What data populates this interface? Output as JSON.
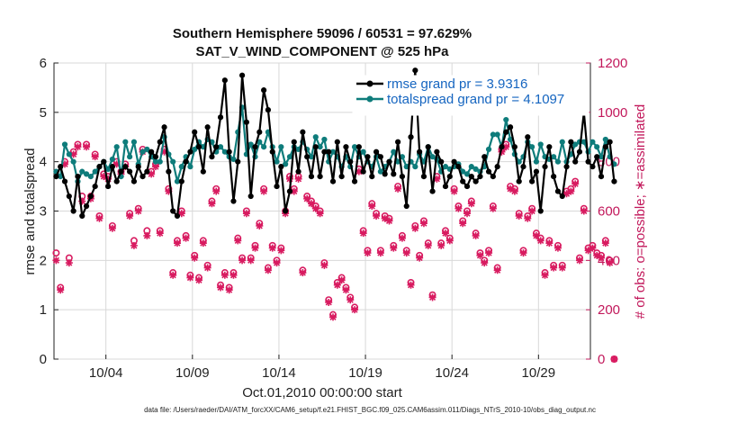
{
  "chart_data": {
    "type": "line",
    "title": "Southern Hemisphere 59096 / 60531 = 97.629%",
    "subtitle": "SAT_V_WIND_COMPONENT @ 525 hPa",
    "xlabel": "Oct.01,2010 00:00:00 start",
    "ylabel": "rmse and totalspread",
    "y2label": "# of obs: o=possible; ∗=assimilated",
    "ylim": [
      0,
      6
    ],
    "y2lim": [
      0,
      1200
    ],
    "xlim": [
      0,
      31
    ],
    "yticks": [
      "0",
      "1",
      "2",
      "3",
      "4",
      "5",
      "6"
    ],
    "y2ticks": [
      "0",
      "200",
      "400",
      "600",
      "800",
      "1000",
      "1200"
    ],
    "xtick_labels": [
      "10/04",
      "10/09",
      "10/14",
      "10/19",
      "10/24",
      "10/29"
    ],
    "xtick_positions": [
      3,
      8,
      13,
      18,
      23,
      28
    ],
    "legend": [
      "rmse grand pr = 3.9316",
      "totalspread grand pr = 4.1097"
    ],
    "colors": {
      "rmse": "#000000",
      "spread": "#0e7c7b",
      "obs": "#d81b60"
    },
    "series": [
      {
        "name": "rmse",
        "axis": "left",
        "x_step": 0.25,
        "x_start": 0.125,
        "values": [
          3.7,
          3.9,
          3.6,
          3.3,
          3.0,
          3.7,
          2.9,
          3.1,
          3.3,
          3.5,
          3.9,
          4.0,
          3.5,
          3.9,
          3.6,
          3.8,
          3.9,
          3.8,
          3.6,
          3.9,
          3.7,
          3.8,
          4.2,
          4.1,
          4.4,
          4.7,
          3.8,
          3.0,
          2.9,
          3.6,
          4.0,
          4.2,
          4.6,
          4.3,
          3.8,
          4.7,
          4.1,
          4.3,
          4.9,
          5.65,
          4.2,
          3.2,
          4.0,
          5.75,
          4.8,
          3.3,
          4.3,
          4.6,
          5.45,
          5.05,
          4.2,
          3.5,
          3.9,
          3.0,
          3.4,
          4.4,
          3.8,
          4.6,
          4.1,
          3.7,
          4.3,
          3.7,
          4.2,
          4.2,
          3.6,
          4.4,
          3.7,
          4.3,
          4.0,
          3.6,
          4.3,
          3.8,
          4.1,
          3.7,
          4.2,
          4.1,
          3.75,
          4.0,
          3.75,
          4.4,
          3.7,
          3.1,
          4.5,
          5.85,
          4.2,
          3.7,
          4.3,
          3.4,
          4.2,
          4.0,
          3.5,
          3.7,
          4.0,
          3.9,
          3.6,
          3.5,
          3.7,
          3.6,
          3.7,
          4.1,
          3.8,
          3.7,
          3.9,
          4.3,
          4.6,
          4.7,
          4.3,
          3.6,
          3.9,
          4.5,
          3.6,
          3.8,
          3.0,
          3.9,
          4.3,
          3.7,
          3.4,
          3.3,
          3.9,
          4.4,
          4.0,
          4.2,
          5.0,
          4.0,
          3.9,
          4.1,
          3.7,
          4.3,
          4.4,
          3.6
        ]
      },
      {
        "name": "totalspread",
        "axis": "left",
        "x_step": 0.25,
        "x_start": 0.125,
        "values": [
          3.8,
          3.7,
          4.35,
          4.15,
          4.0,
          3.6,
          3.8,
          3.75,
          3.7,
          3.8,
          3.9,
          4.0,
          3.85,
          4.05,
          4.3,
          3.7,
          4.4,
          4.1,
          4.4,
          3.95,
          4.2,
          4.25,
          4.1,
          4.0,
          4.0,
          4.5,
          4.15,
          4.0,
          3.6,
          3.9,
          4.1,
          3.9,
          4.25,
          4.4,
          4.3,
          4.45,
          4.4,
          4.2,
          4.3,
          4.2,
          4.1,
          4.05,
          4.6,
          5.1,
          4.15,
          4.35,
          4.1,
          4.4,
          4.3,
          4.6,
          4.3,
          4.0,
          4.3,
          3.95,
          4.1,
          4.3,
          4.25,
          4.4,
          4.25,
          4.1,
          4.5,
          4.3,
          4.45,
          4.0,
          4.2,
          4.1,
          3.9,
          4.1,
          3.9,
          4.3,
          4.1,
          4.2,
          4.0,
          3.9,
          4.1,
          3.8,
          3.9,
          4.0,
          4.2,
          4.0,
          4.1,
          3.9,
          4.0,
          3.9,
          4.15,
          4.0,
          4.3,
          4.1,
          4.05,
          3.8,
          3.9,
          3.85,
          3.9,
          3.95,
          3.8,
          3.75,
          3.9,
          3.85,
          3.8,
          3.9,
          4.25,
          4.55,
          4.55,
          4.3,
          4.85,
          4.45,
          4.15,
          4.0,
          4.1,
          4.4,
          4.3,
          4.0,
          4.35,
          4.1,
          4.05,
          4.1,
          4.0,
          4.4,
          4.0,
          4.15,
          4.35,
          4.4,
          4.4,
          4.2,
          4.4,
          4.3,
          4.1,
          4.45,
          4.1,
          3.95
        ]
      },
      {
        "name": "possible",
        "axis": "right",
        "marker": "o",
        "x_step": 0.25,
        "x_start": 0.125,
        "values": [
          430,
          290,
          800,
          410,
          840,
          870,
          660,
          870,
          660,
          830,
          580,
          750,
          740,
          540,
          800,
          760,
          790,
          590,
          480,
          610,
          850,
          520,
          760,
          790,
          520,
          850,
          690,
          350,
          480,
          600,
          500,
          340,
          420,
          330,
          480,
          380,
          640,
          690,
          300,
          350,
          290,
          350,
          490,
          410,
          600,
          410,
          460,
          550,
          690,
          370,
          460,
          400,
          450,
          600,
          740,
          690,
          740,
          360,
          660,
          640,
          620,
          600,
          390,
          240,
          180,
          310,
          330,
          290,
          250,
          210,
          770,
          520,
          440,
          630,
          590,
          440,
          580,
          570,
          460,
          700,
          500,
          440,
          310,
          540,
          420,
          560,
          470,
          260,
          740,
          470,
          520,
          490,
          690,
          620,
          560,
          600,
          640,
          510,
          430,
          400,
          440,
          620,
          370,
          850,
          870,
          700,
          690,
          590,
          440,
          580,
          610,
          510,
          490,
          350,
          480,
          380,
          460,
          380,
          680,
          690,
          720,
          410,
          610,
          450,
          460,
          430,
          420,
          480,
          400,
          0
        ]
      },
      {
        "name": "assimilated",
        "axis": "right",
        "marker": "*",
        "x_step": 0.25,
        "x_start": 0.125,
        "values": [
          400,
          280,
          790,
          390,
          830,
          860,
          640,
          860,
          650,
          820,
          570,
          740,
          730,
          530,
          790,
          750,
          780,
          580,
          460,
          600,
          840,
          500,
          750,
          780,
          510,
          840,
          680,
          340,
          470,
          590,
          490,
          330,
          410,
          320,
          470,
          370,
          630,
          680,
          290,
          340,
          280,
          340,
          480,
          400,
          590,
          400,
          450,
          540,
          680,
          360,
          450,
          390,
          440,
          590,
          730,
          680,
          730,
          350,
          650,
          630,
          610,
          590,
          380,
          230,
          170,
          300,
          320,
          280,
          240,
          200,
          760,
          510,
          430,
          620,
          580,
          430,
          570,
          560,
          450,
          690,
          490,
          430,
          300,
          530,
          410,
          550,
          460,
          250,
          730,
          460,
          510,
          480,
          680,
          610,
          550,
          590,
          630,
          500,
          420,
          390,
          430,
          610,
          360,
          840,
          860,
          690,
          680,
          580,
          430,
          570,
          600,
          500,
          480,
          340,
          470,
          370,
          450,
          370,
          670,
          680,
          710,
          400,
          600,
          440,
          450,
          420,
          410,
          470,
          390,
          0
        ]
      }
    ]
  },
  "footer": "data file: /Users/raeder/DAI/ATM_forcXX/CAM6_setup/f.e21.FHIST_BGC.f09_025.CAM6assim.011/Diags_NTrS_2010-10/obs_diag_output.nc"
}
